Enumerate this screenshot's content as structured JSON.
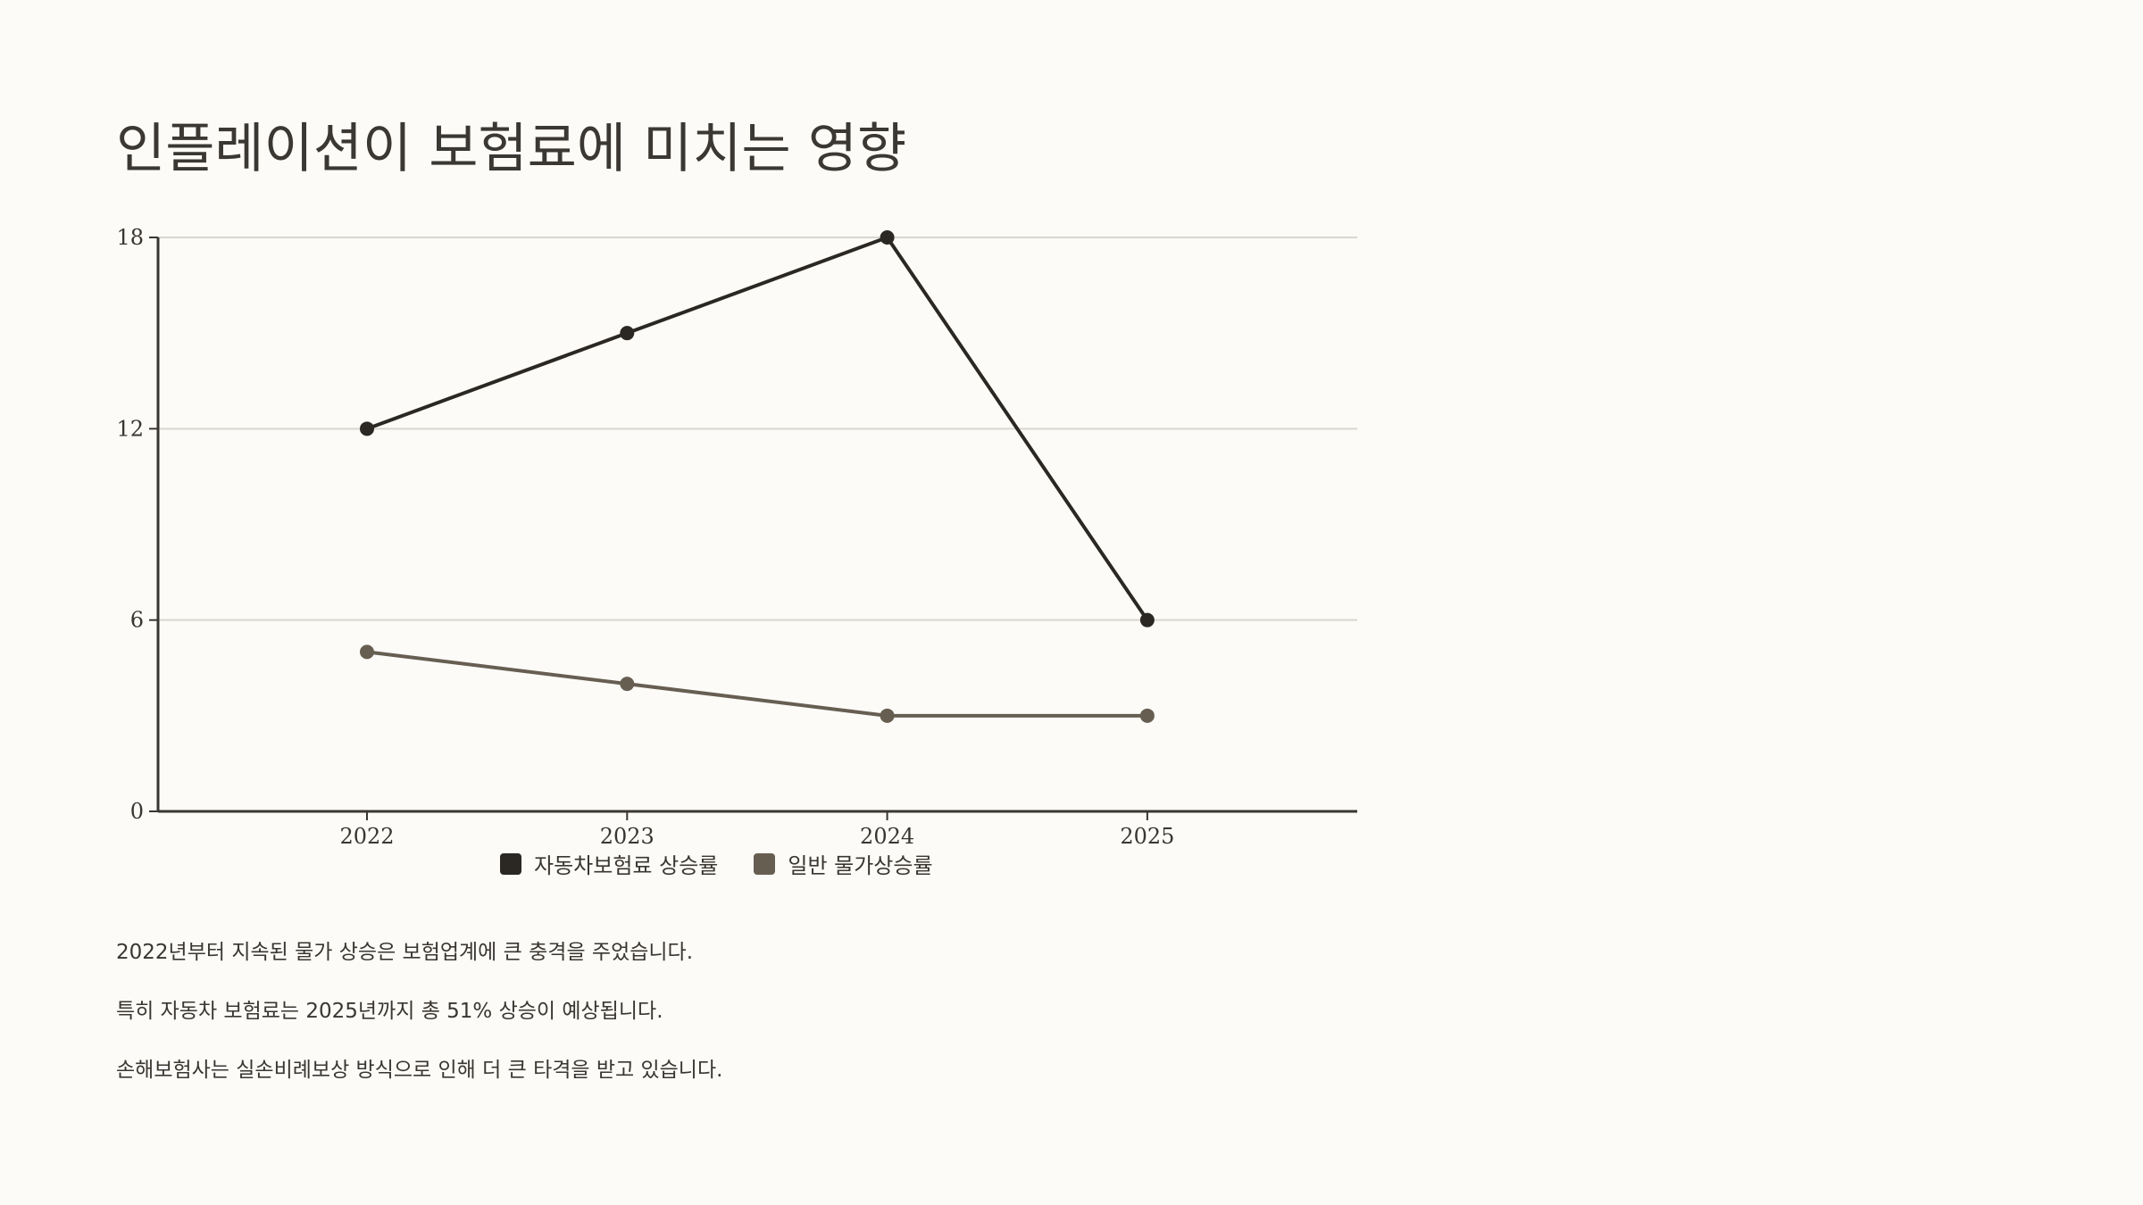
{
  "slide": {
    "title": "인플레이션이 보험료에 미치는 영향",
    "notes": [
      "2022년부터 지속된 물가 상승은 보험업계에 큰 충격을 주었습니다.",
      "특히 자동차 보험료는 2025년까지 총 51% 상승이 예상됩니다.",
      "손해보험사는 실손비례보상 방식으로 인해 더 큰 타격을 받고 있습니다."
    ]
  },
  "chart_data": {
    "type": "line",
    "title": "",
    "xlabel": "",
    "ylabel": "",
    "x": [
      "2022",
      "2023",
      "2024",
      "2025"
    ],
    "series": [
      {
        "name": "자동차보험료 상승률",
        "values": [
          12,
          15,
          18,
          6
        ],
        "color": "#2b2824"
      },
      {
        "name": "일반 물가상승률",
        "values": [
          5,
          4,
          3,
          3
        ],
        "color": "#675e52"
      }
    ],
    "ylim": [
      0,
      18
    ],
    "yticks": [
      "0",
      "6",
      "12",
      "18"
    ],
    "grid": true,
    "legend_position": "bottom"
  }
}
